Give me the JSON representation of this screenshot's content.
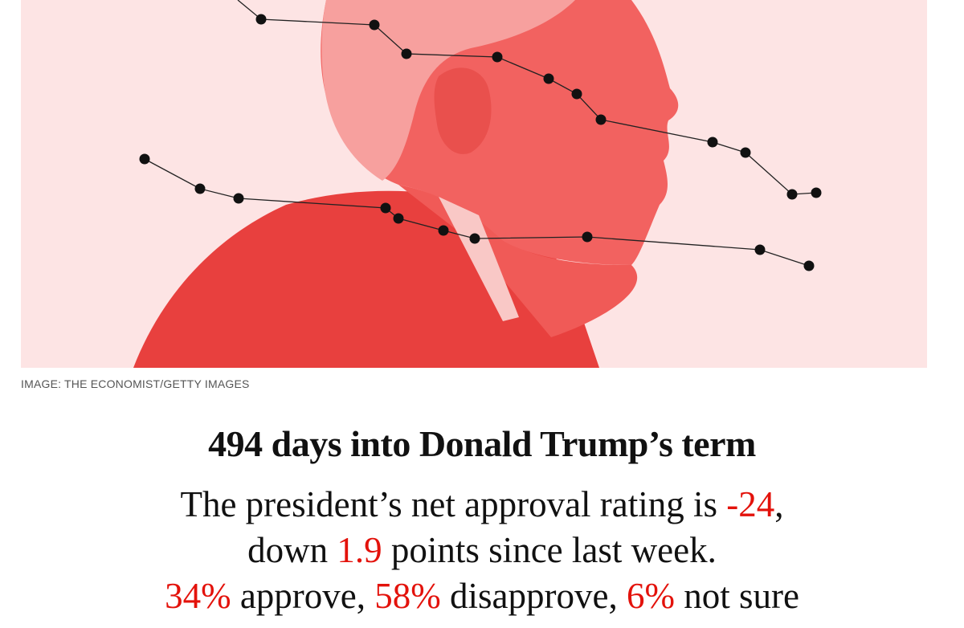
{
  "image": {
    "caption": "IMAGE: THE ECONOMIST/GETTY IMAGES",
    "colors": {
      "background": "#fde4e4",
      "portrait": "#ef4a48",
      "dots": "#111111"
    }
  },
  "headline": "494 days into Donald Trump’s term",
  "summary": {
    "line1_text": "The president’s net approval rating is ",
    "net_approval": "-24",
    "line1_end": ",",
    "line2_start": "down ",
    "change": "1.9",
    "line2_end": " points since last week.",
    "approve": "34%",
    "approve_label": " approve, ",
    "disapprove": "58%",
    "disapprove_label": " disapprove, ",
    "not_sure": "6%",
    "not_sure_label": " not sure"
  },
  "colors": {
    "highlight": "#e3120b",
    "text": "#111111"
  }
}
